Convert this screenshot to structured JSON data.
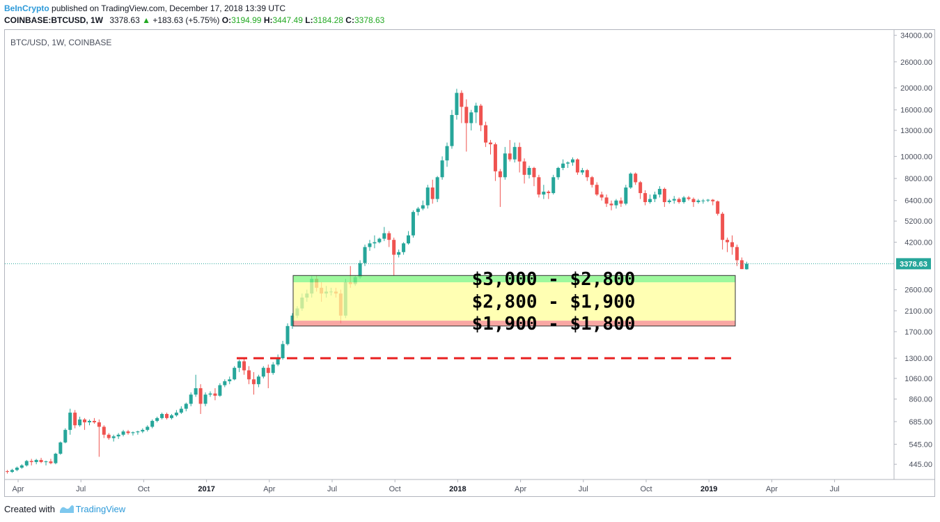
{
  "header": {
    "brand": "BeInCrypto",
    "published": "published on TradingView.com, December 17, 2018 13:39 UTC",
    "symbol_line": "COINBASE:BTCUSD, 1W",
    "last": "3378.63",
    "change": "+183.63 (+5.75%)",
    "o_label": "O:",
    "o_value": "3194.99",
    "h_label": "H:",
    "h_value": "3447.49",
    "l_label": "L:",
    "l_value": "3184.28",
    "c_label": "C:",
    "c_value": "3378.63"
  },
  "chart_title": "BTC/USD, 1W, COINBASE",
  "footer": {
    "prefix": "Created with",
    "brand": "TradingView"
  },
  "colors": {
    "up": "#26a69a",
    "down": "#ef5350",
    "green_zone": "#7cf57c",
    "yellow_zone": "#ffff99",
    "red_zone": "#f78a84",
    "dashed": "#e82020",
    "price_tag": "#26a69a"
  },
  "chart_data": {
    "type": "candlestick",
    "title": "BTC/USD, 1W, COINBASE",
    "y_scale": "log",
    "y_ticks": [
      "34000.00",
      "26000.00",
      "20000.00",
      "16000.00",
      "13000.00",
      "10000.00",
      "8000.00",
      "6400.00",
      "5200.00",
      "4200.00",
      "2600.00",
      "2100.00",
      "1700.00",
      "1300.00",
      "1060.00",
      "860.00",
      "685.00",
      "545.00",
      "445.00"
    ],
    "x_ticks": [
      {
        "label": "Apr",
        "bold": false
      },
      {
        "label": "Jul",
        "bold": false
      },
      {
        "label": "Oct",
        "bold": false
      },
      {
        "label": "2017",
        "bold": true
      },
      {
        "label": "Apr",
        "bold": false
      },
      {
        "label": "Jul",
        "bold": false
      },
      {
        "label": "Oct",
        "bold": false
      },
      {
        "label": "2018",
        "bold": true
      },
      {
        "label": "Apr",
        "bold": false
      },
      {
        "label": "Jul",
        "bold": false
      },
      {
        "label": "Oct",
        "bold": false
      },
      {
        "label": "2019",
        "bold": true
      },
      {
        "label": "Apr",
        "bold": false
      },
      {
        "label": "Jul",
        "bold": false
      }
    ],
    "last_price": "3378.63",
    "zones": [
      {
        "label": "$3,000 - $2,800",
        "top": 3000,
        "bottom": 2800,
        "color": "green"
      },
      {
        "label": "$2,800 - $1,900",
        "top": 2800,
        "bottom": 1900,
        "color": "yellow"
      },
      {
        "label": "$1,900 - $1,800",
        "top": 1900,
        "bottom": 1800,
        "color": "red"
      }
    ],
    "dashed_level": 1300,
    "candles": [
      [
        415,
        420,
        405,
        412
      ],
      [
        412,
        425,
        408,
        420
      ],
      [
        420,
        435,
        415,
        430
      ],
      [
        430,
        445,
        425,
        440
      ],
      [
        440,
        465,
        435,
        460
      ],
      [
        460,
        470,
        440,
        455
      ],
      [
        455,
        470,
        445,
        465
      ],
      [
        465,
        475,
        450,
        455
      ],
      [
        455,
        462,
        440,
        458
      ],
      [
        458,
        470,
        445,
        450
      ],
      [
        450,
        500,
        445,
        495
      ],
      [
        495,
        560,
        490,
        555
      ],
      [
        555,
        640,
        550,
        630
      ],
      [
        630,
        780,
        600,
        750
      ],
      [
        750,
        770,
        640,
        660
      ],
      [
        660,
        720,
        650,
        700
      ],
      [
        700,
        710,
        630,
        680
      ],
      [
        680,
        700,
        660,
        690
      ],
      [
        690,
        710,
        670,
        680
      ],
      [
        680,
        700,
        480,
        650
      ],
      [
        650,
        660,
        580,
        600
      ],
      [
        600,
        610,
        570,
        580
      ],
      [
        580,
        600,
        560,
        590
      ],
      [
        590,
        610,
        575,
        600
      ],
      [
        600,
        630,
        590,
        620
      ],
      [
        620,
        630,
        600,
        610
      ],
      [
        610,
        620,
        595,
        615
      ],
      [
        615,
        625,
        600,
        620
      ],
      [
        620,
        640,
        610,
        630
      ],
      [
        630,
        660,
        620,
        650
      ],
      [
        650,
        700,
        640,
        690
      ],
      [
        690,
        720,
        680,
        710
      ],
      [
        710,
        750,
        700,
        740
      ],
      [
        740,
        750,
        700,
        710
      ],
      [
        710,
        740,
        700,
        730
      ],
      [
        730,
        770,
        720,
        750
      ],
      [
        750,
        800,
        740,
        780
      ],
      [
        780,
        830,
        760,
        820
      ],
      [
        820,
        920,
        800,
        900
      ],
      [
        900,
        1100,
        880,
        960
      ],
      [
        960,
        1000,
        740,
        820
      ],
      [
        820,
        920,
        800,
        900
      ],
      [
        900,
        930,
        880,
        910
      ],
      [
        910,
        960,
        850,
        890
      ],
      [
        890,
        1010,
        880,
        990
      ],
      [
        990,
        1050,
        970,
        1030
      ],
      [
        1030,
        1080,
        1000,
        1050
      ],
      [
        1050,
        1200,
        1040,
        1180
      ],
      [
        1180,
        1280,
        1130,
        1260
      ],
      [
        1260,
        1290,
        1100,
        1150
      ],
      [
        1150,
        1200,
        1000,
        1050
      ],
      [
        1050,
        1130,
        900,
        1000
      ],
      [
        1000,
        1100,
        970,
        1080
      ],
      [
        1080,
        1200,
        1060,
        1180
      ],
      [
        1180,
        1220,
        960,
        1120
      ],
      [
        1120,
        1250,
        1100,
        1220
      ],
      [
        1220,
        1350,
        1200,
        1300
      ],
      [
        1300,
        1550,
        1280,
        1500
      ],
      [
        1500,
        1850,
        1480,
        1800
      ],
      [
        1800,
        2050,
        1750,
        2000
      ],
      [
        2000,
        2200,
        1950,
        2150
      ],
      [
        2150,
        2500,
        2100,
        2400
      ],
      [
        2400,
        2600,
        2300,
        2500
      ],
      [
        2500,
        2980,
        2400,
        2900
      ],
      [
        2900,
        3000,
        2550,
        2650
      ],
      [
        2650,
        2800,
        2300,
        2500
      ],
      [
        2500,
        2700,
        2400,
        2550
      ],
      [
        2550,
        2650,
        2450,
        2550
      ],
      [
        2550,
        2650,
        2400,
        2500
      ],
      [
        2500,
        2600,
        1850,
        2000
      ],
      [
        2000,
        2900,
        1950,
        2800
      ],
      [
        2800,
        3300,
        2650,
        2750
      ],
      [
        2750,
        3000,
        2700,
        2950
      ],
      [
        2950,
        3500,
        2900,
        3400
      ],
      [
        3400,
        4100,
        3300,
        4000
      ],
      [
        4000,
        4300,
        3850,
        4150
      ],
      [
        4150,
        4500,
        3950,
        4200
      ],
      [
        4200,
        4400,
        4150,
        4350
      ],
      [
        4350,
        4900,
        4250,
        4600
      ],
      [
        4600,
        4700,
        4000,
        4300
      ],
      [
        4300,
        4400,
        3000,
        3700
      ],
      [
        3700,
        3900,
        3600,
        3800
      ],
      [
        3800,
        4200,
        3700,
        4150
      ],
      [
        4150,
        4700,
        4100,
        4500
      ],
      [
        4500,
        5800,
        4400,
        5700
      ],
      [
        5700,
        6000,
        5500,
        5900
      ],
      [
        5900,
        6400,
        5800,
        6100
      ],
      [
        6100,
        7500,
        5900,
        7300
      ],
      [
        7300,
        7900,
        6200,
        6500
      ],
      [
        6500,
        8200,
        6300,
        8100
      ],
      [
        8100,
        10000,
        7900,
        9600
      ],
      [
        9600,
        11500,
        9000,
        11100
      ],
      [
        11100,
        16000,
        10800,
        15200
      ],
      [
        15200,
        19800,
        14500,
        19000
      ],
      [
        19000,
        19500,
        14000,
        16500
      ],
      [
        16500,
        17800,
        10500,
        14000
      ],
      [
        14000,
        16000,
        13000,
        15600
      ],
      [
        15600,
        17200,
        14000,
        16700
      ],
      [
        16700,
        17000,
        12900,
        13700
      ],
      [
        13700,
        14200,
        11000,
        11500
      ],
      [
        11500,
        11800,
        10200,
        11300
      ],
      [
        11300,
        11500,
        7800,
        8600
      ],
      [
        8600,
        8800,
        6000,
        8100
      ],
      [
        8100,
        11000,
        7900,
        10300
      ],
      [
        10300,
        11800,
        9500,
        9700
      ],
      [
        9700,
        11500,
        9400,
        11000
      ],
      [
        11000,
        11500,
        8500,
        9500
      ],
      [
        9500,
        9800,
        7600,
        8300
      ],
      [
        8300,
        9100,
        8000,
        8900
      ],
      [
        8900,
        9000,
        7400,
        8100
      ],
      [
        8100,
        8300,
        6600,
        6800
      ],
      [
        6800,
        7500,
        6500,
        7000
      ],
      [
        7000,
        7100,
        6500,
        6900
      ],
      [
        6900,
        8300,
        6800,
        8100
      ],
      [
        8100,
        9000,
        7900,
        8900
      ],
      [
        8900,
        9700,
        8700,
        9300
      ],
      [
        9300,
        9500,
        8900,
        9400
      ],
      [
        9400,
        9900,
        9100,
        9700
      ],
      [
        9700,
        9800,
        8300,
        8500
      ],
      [
        8500,
        8900,
        8300,
        8700
      ],
      [
        8700,
        8800,
        7800,
        8100
      ],
      [
        8100,
        8200,
        7300,
        7500
      ],
      [
        7500,
        7700,
        6700,
        6800
      ],
      [
        6800,
        7000,
        6400,
        6600
      ],
      [
        6600,
        6800,
        6000,
        6200
      ],
      [
        6200,
        6400,
        5800,
        6100
      ],
      [
        6100,
        6500,
        5900,
        6400
      ],
      [
        6400,
        6600,
        6000,
        6200
      ],
      [
        6200,
        7500,
        6100,
        7300
      ],
      [
        7300,
        8500,
        7200,
        8400
      ],
      [
        8400,
        8500,
        7500,
        7700
      ],
      [
        7700,
        7800,
        6500,
        6900
      ],
      [
        6900,
        7100,
        6100,
        6300
      ],
      [
        6300,
        6800,
        6200,
        6500
      ],
      [
        6500,
        7000,
        6300,
        6800
      ],
      [
        6800,
        7400,
        6600,
        7200
      ],
      [
        7200,
        7300,
        6000,
        6300
      ],
      [
        6300,
        6500,
        6200,
        6400
      ],
      [
        6400,
        6700,
        6200,
        6500
      ],
      [
        6500,
        6600,
        6200,
        6300
      ],
      [
        6300,
        6700,
        6200,
        6600
      ],
      [
        6600,
        6700,
        6400,
        6500
      ],
      [
        6500,
        6600,
        6000,
        6300
      ],
      [
        6300,
        6500,
        6200,
        6400
      ],
      [
        6400,
        6500,
        6200,
        6400
      ],
      [
        6400,
        6500,
        6300,
        6450
      ],
      [
        6450,
        6500,
        6100,
        6350
      ],
      [
        6350,
        6400,
        5500,
        5600
      ],
      [
        5600,
        5700,
        3900,
        4300
      ],
      [
        4300,
        4400,
        3800,
        4200
      ],
      [
        4200,
        4500,
        3700,
        4000
      ],
      [
        4000,
        4100,
        3300,
        3500
      ],
      [
        3500,
        3600,
        3200,
        3200
      ],
      [
        3195,
        3447,
        3184,
        3379
      ]
    ]
  }
}
